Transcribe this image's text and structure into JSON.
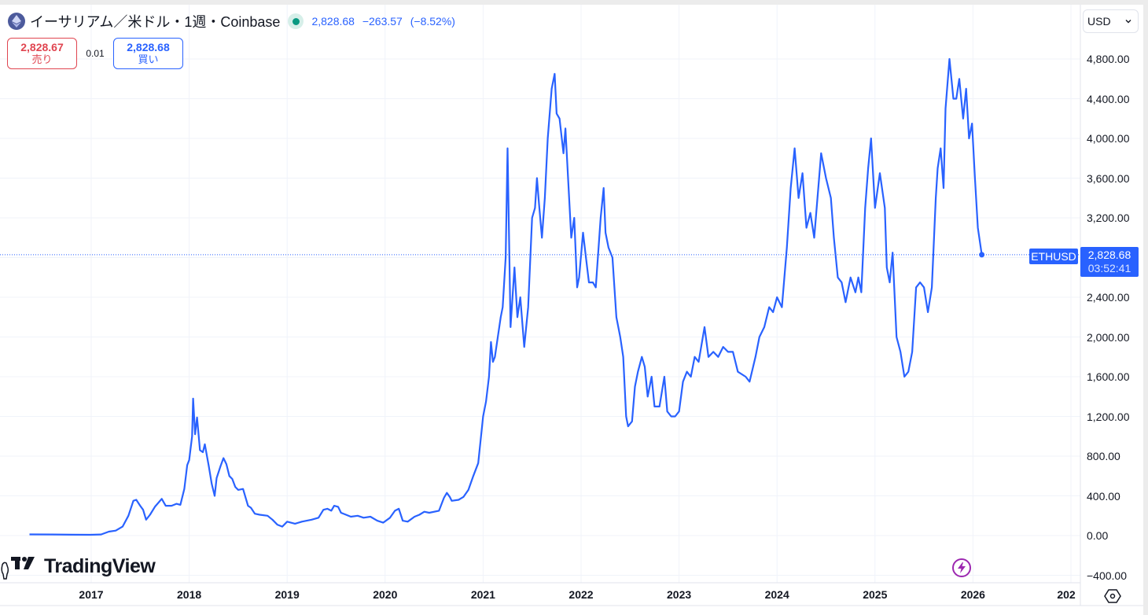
{
  "header": {
    "title": "イーサリアム／米ドル・1週・Coinbase",
    "last_price": "2,828.68",
    "change": "−263.57",
    "change_pct": "(−8.52%)"
  },
  "trade": {
    "sell_price": "2,828.67",
    "sell_label": "売り",
    "spread": "0.01",
    "buy_price": "2,828.68",
    "buy_label": "買い"
  },
  "currency_select": {
    "value": "USD"
  },
  "price_tag": {
    "symbol": "ETHUSD",
    "price": "2,828.68",
    "countdown": "03:52:41"
  },
  "branding": {
    "logo_text": "TradingView"
  },
  "colors": {
    "line": "#2962ff",
    "sell": "#e04550",
    "buy": "#2962ff",
    "live": "#089981",
    "grid": "#f0f3fa"
  },
  "chart_data": {
    "type": "line",
    "title": "イーサリアム／米ドル・1週・Coinbase",
    "xlabel": "",
    "ylabel": "USD",
    "ylim": [
      -400,
      4800
    ],
    "grid": true,
    "x_ticks": [
      "2017",
      "2018",
      "2019",
      "2020",
      "2021",
      "2022",
      "2023",
      "2024",
      "2025",
      "2026",
      "202"
    ],
    "y_ticks": [
      "4,800.00",
      "4,400.00",
      "4,000.00",
      "3,600.00",
      "3,200.00",
      "2,400.00",
      "2,000.00",
      "1,600.00",
      "1,200.00",
      "800.00",
      "400.00",
      "0.00",
      "-400.00"
    ],
    "last_value": 2828.68,
    "series": [
      {
        "name": "ETHUSD",
        "x_unit": "year",
        "points": [
          [
            2016.37,
            12
          ],
          [
            2016.6,
            11
          ],
          [
            2016.8,
            9
          ],
          [
            2016.99,
            8
          ],
          [
            2017.1,
            11
          ],
          [
            2017.18,
            40
          ],
          [
            2017.25,
            50
          ],
          [
            2017.32,
            90
          ],
          [
            2017.38,
            200
          ],
          [
            2017.43,
            350
          ],
          [
            2017.46,
            360
          ],
          [
            2017.5,
            300
          ],
          [
            2017.53,
            260
          ],
          [
            2017.56,
            160
          ],
          [
            2017.6,
            210
          ],
          [
            2017.65,
            290
          ],
          [
            2017.72,
            370
          ],
          [
            2017.76,
            300
          ],
          [
            2017.82,
            300
          ],
          [
            2017.87,
            320
          ],
          [
            2017.91,
            310
          ],
          [
            2017.95,
            470
          ],
          [
            2017.98,
            710
          ],
          [
            2018.0,
            760
          ],
          [
            2018.03,
            1000
          ],
          [
            2018.04,
            1380
          ],
          [
            2018.06,
            1020
          ],
          [
            2018.08,
            1190
          ],
          [
            2018.11,
            860
          ],
          [
            2018.14,
            840
          ],
          [
            2018.16,
            920
          ],
          [
            2018.2,
            700
          ],
          [
            2018.23,
            520
          ],
          [
            2018.26,
            400
          ],
          [
            2018.28,
            580
          ],
          [
            2018.32,
            700
          ],
          [
            2018.35,
            780
          ],
          [
            2018.38,
            720
          ],
          [
            2018.41,
            600
          ],
          [
            2018.44,
            570
          ],
          [
            2018.47,
            490
          ],
          [
            2018.5,
            460
          ],
          [
            2018.55,
            470
          ],
          [
            2018.6,
            300
          ],
          [
            2018.63,
            280
          ],
          [
            2018.67,
            220
          ],
          [
            2018.72,
            210
          ],
          [
            2018.8,
            200
          ],
          [
            2018.85,
            160
          ],
          [
            2018.9,
            110
          ],
          [
            2018.95,
            90
          ],
          [
            2019.0,
            140
          ],
          [
            2019.08,
            120
          ],
          [
            2019.15,
            140
          ],
          [
            2019.25,
            160
          ],
          [
            2019.32,
            180
          ],
          [
            2019.37,
            260
          ],
          [
            2019.41,
            270
          ],
          [
            2019.45,
            250
          ],
          [
            2019.48,
            300
          ],
          [
            2019.52,
            290
          ],
          [
            2019.55,
            230
          ],
          [
            2019.6,
            210
          ],
          [
            2019.65,
            190
          ],
          [
            2019.72,
            200
          ],
          [
            2019.78,
            180
          ],
          [
            2019.85,
            190
          ],
          [
            2019.92,
            150
          ],
          [
            2019.98,
            130
          ],
          [
            2020.05,
            180
          ],
          [
            2020.1,
            250
          ],
          [
            2020.14,
            270
          ],
          [
            2020.18,
            150
          ],
          [
            2020.23,
            140
          ],
          [
            2020.3,
            190
          ],
          [
            2020.35,
            210
          ],
          [
            2020.4,
            240
          ],
          [
            2020.45,
            230
          ],
          [
            2020.55,
            250
          ],
          [
            2020.6,
            380
          ],
          [
            2020.63,
            430
          ],
          [
            2020.66,
            390
          ],
          [
            2020.68,
            350
          ],
          [
            2020.75,
            360
          ],
          [
            2020.8,
            390
          ],
          [
            2020.85,
            460
          ],
          [
            2020.9,
            600
          ],
          [
            2020.95,
            730
          ],
          [
            2021.0,
            1200
          ],
          [
            2021.03,
            1350
          ],
          [
            2021.06,
            1600
          ],
          [
            2021.08,
            1950
          ],
          [
            2021.1,
            1750
          ],
          [
            2021.12,
            1800
          ],
          [
            2021.15,
            2000
          ],
          [
            2021.18,
            2200
          ],
          [
            2021.2,
            2300
          ],
          [
            2021.23,
            2800
          ],
          [
            2021.25,
            3900
          ],
          [
            2021.28,
            2100
          ],
          [
            2021.32,
            2700
          ],
          [
            2021.35,
            2200
          ],
          [
            2021.38,
            2400
          ],
          [
            2021.42,
            1900
          ],
          [
            2021.46,
            2300
          ],
          [
            2021.5,
            3200
          ],
          [
            2021.53,
            3300
          ],
          [
            2021.55,
            3600
          ],
          [
            2021.57,
            3350
          ],
          [
            2021.6,
            3000
          ],
          [
            2021.63,
            3400
          ],
          [
            2021.66,
            4000
          ],
          [
            2021.7,
            4500
          ],
          [
            2021.73,
            4650
          ],
          [
            2021.75,
            4250
          ],
          [
            2021.78,
            4200
          ],
          [
            2021.82,
            3850
          ],
          [
            2021.84,
            4100
          ],
          [
            2021.87,
            3550
          ],
          [
            2021.9,
            3000
          ],
          [
            2021.93,
            3200
          ],
          [
            2021.96,
            2500
          ],
          [
            2021.98,
            2600
          ],
          [
            2022.02,
            3050
          ],
          [
            2022.05,
            2800
          ],
          [
            2022.08,
            2550
          ],
          [
            2022.12,
            2550
          ],
          [
            2022.15,
            2500
          ],
          [
            2022.2,
            3200
          ],
          [
            2022.23,
            3500
          ],
          [
            2022.25,
            3050
          ],
          [
            2022.28,
            2900
          ],
          [
            2022.32,
            2800
          ],
          [
            2022.36,
            2200
          ],
          [
            2022.4,
            2000
          ],
          [
            2022.43,
            1800
          ],
          [
            2022.46,
            1200
          ],
          [
            2022.48,
            1100
          ],
          [
            2022.52,
            1150
          ],
          [
            2022.55,
            1500
          ],
          [
            2022.58,
            1650
          ],
          [
            2022.62,
            1800
          ],
          [
            2022.65,
            1700
          ],
          [
            2022.68,
            1400
          ],
          [
            2022.72,
            1600
          ],
          [
            2022.75,
            1300
          ],
          [
            2022.8,
            1300
          ],
          [
            2022.85,
            1600
          ],
          [
            2022.88,
            1250
          ],
          [
            2022.92,
            1200
          ],
          [
            2022.96,
            1200
          ],
          [
            2023.0,
            1250
          ],
          [
            2023.04,
            1550
          ],
          [
            2023.08,
            1650
          ],
          [
            2023.12,
            1600
          ],
          [
            2023.16,
            1800
          ],
          [
            2023.2,
            1750
          ],
          [
            2023.26,
            2100
          ],
          [
            2023.3,
            1800
          ],
          [
            2023.35,
            1850
          ],
          [
            2023.4,
            1800
          ],
          [
            2023.45,
            1900
          ],
          [
            2023.5,
            1850
          ],
          [
            2023.55,
            1850
          ],
          [
            2023.6,
            1650
          ],
          [
            2023.68,
            1600
          ],
          [
            2023.72,
            1550
          ],
          [
            2023.78,
            1800
          ],
          [
            2023.82,
            2000
          ],
          [
            2023.87,
            2100
          ],
          [
            2023.92,
            2300
          ],
          [
            2023.96,
            2250
          ],
          [
            2024.0,
            2400
          ],
          [
            2024.05,
            2300
          ],
          [
            2024.1,
            2900
          ],
          [
            2024.14,
            3500
          ],
          [
            2024.18,
            3900
          ],
          [
            2024.22,
            3400
          ],
          [
            2024.26,
            3650
          ],
          [
            2024.3,
            3100
          ],
          [
            2024.34,
            3250
          ],
          [
            2024.38,
            3000
          ],
          [
            2024.45,
            3850
          ],
          [
            2024.5,
            3600
          ],
          [
            2024.55,
            3400
          ],
          [
            2024.58,
            3000
          ],
          [
            2024.62,
            2600
          ],
          [
            2024.66,
            2550
          ],
          [
            2024.7,
            2350
          ],
          [
            2024.75,
            2600
          ],
          [
            2024.8,
            2450
          ],
          [
            2024.83,
            2600
          ],
          [
            2024.86,
            2450
          ],
          [
            2024.9,
            3300
          ],
          [
            2024.93,
            3700
          ],
          [
            2024.96,
            4000
          ],
          [
            2025.0,
            3300
          ],
          [
            2025.05,
            3650
          ],
          [
            2025.1,
            3300
          ],
          [
            2025.12,
            2700
          ],
          [
            2025.15,
            2550
          ],
          [
            2025.18,
            2850
          ],
          [
            2025.22,
            2000
          ],
          [
            2025.26,
            1850
          ],
          [
            2025.3,
            1600
          ],
          [
            2025.34,
            1650
          ],
          [
            2025.38,
            1850
          ],
          [
            2025.42,
            2500
          ],
          [
            2025.46,
            2550
          ],
          [
            2025.5,
            2500
          ],
          [
            2025.54,
            2250
          ],
          [
            2025.58,
            2500
          ],
          [
            2025.62,
            3400
          ],
          [
            2025.64,
            3700
          ],
          [
            2025.67,
            3900
          ],
          [
            2025.7,
            3500
          ],
          [
            2025.72,
            4300
          ],
          [
            2025.76,
            4800
          ],
          [
            2025.8,
            4400
          ],
          [
            2025.83,
            4400
          ],
          [
            2025.86,
            4600
          ],
          [
            2025.9,
            4200
          ],
          [
            2025.93,
            4500
          ],
          [
            2025.96,
            4000
          ],
          [
            2025.99,
            4150
          ],
          [
            2026.02,
            3600
          ],
          [
            2026.05,
            3100
          ],
          [
            2026.09,
            2828.68
          ]
        ]
      }
    ]
  }
}
